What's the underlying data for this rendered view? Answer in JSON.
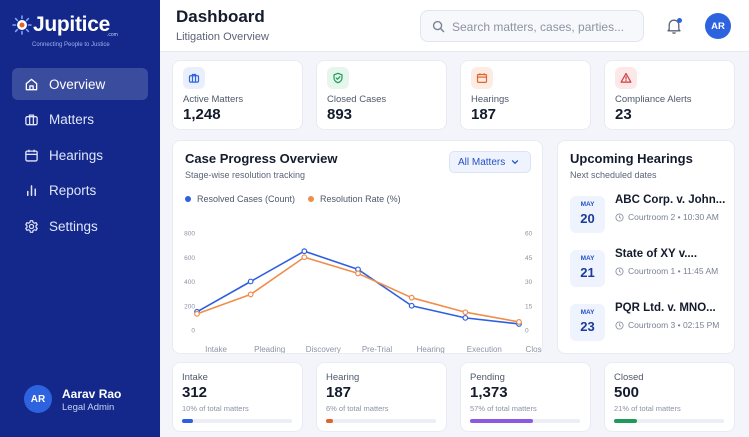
{
  "brand": {
    "name": "Jupitice",
    "domain_suffix": ".com",
    "tagline": "Connecting People to Justice"
  },
  "sidebar": {
    "items": [
      {
        "label": "Overview",
        "icon": "home-icon",
        "active": true
      },
      {
        "label": "Matters",
        "icon": "briefcase-icon"
      },
      {
        "label": "Hearings",
        "icon": "calendar-icon"
      },
      {
        "label": "Reports",
        "icon": "bar-chart-icon"
      },
      {
        "label": "Settings",
        "icon": "gear-icon"
      }
    ]
  },
  "user": {
    "initials": "AR",
    "name": "Aarav Rao",
    "role": "Legal Admin"
  },
  "header": {
    "title": "Dashboard",
    "subtitle": "Litigation Overview",
    "search_placeholder": "Search matters, cases, parties...",
    "avatar_initials": "AR"
  },
  "stats": [
    {
      "label": "Active Matters",
      "value": "1,248",
      "icon": "briefcase-icon",
      "color": "#2e63e0",
      "bg": "#e9effd"
    },
    {
      "label": "Closed Cases",
      "value": "893",
      "icon": "shield-check-icon",
      "color": "#1e9a5a",
      "bg": "#e5f6ec"
    },
    {
      "label": "Hearings",
      "value": "187",
      "icon": "calendar-icon",
      "color": "#e2632c",
      "bg": "#fdece3"
    },
    {
      "label": "Compliance Alerts",
      "value": "23",
      "icon": "warning-icon",
      "color": "#d23a3a",
      "bg": "#fce8e8"
    }
  ],
  "chart_card": {
    "title": "Case Progress Overview",
    "subtitle": "Stage-wise resolution tracking",
    "filter_label": "All Matters"
  },
  "chart_data": {
    "type": "line",
    "categories": [
      "Intake",
      "Pleading",
      "Discovery",
      "Pre-Trial",
      "Hearing",
      "Execution",
      "Closed"
    ],
    "series": [
      {
        "name": "Resolved Cases (Count)",
        "axis": "left",
        "color": "#2e5fe0",
        "values": [
          150,
          400,
          650,
          500,
          200,
          100,
          50
        ]
      },
      {
        "name": "Resolution Rate (%)",
        "axis": "right",
        "color": "#ef8e4c",
        "values": [
          10,
          22,
          45,
          35,
          20,
          11,
          5
        ]
      }
    ],
    "y_left": {
      "ticks": [
        0,
        200,
        400,
        600,
        800
      ],
      "range": [
        0,
        800
      ]
    },
    "y_right": {
      "ticks": [
        0,
        15,
        30,
        45,
        60
      ],
      "range": [
        0,
        60
      ]
    },
    "grid": false,
    "legend": "top-left"
  },
  "upcoming": {
    "title": "Upcoming Hearings",
    "subtitle": "Next scheduled dates",
    "items": [
      {
        "month": "MAY",
        "day": "20",
        "title": "ABC Corp. v. John...",
        "info": "Courtroom 2 • 10:30 AM"
      },
      {
        "month": "MAY",
        "day": "21",
        "title": "State of XY v....",
        "info": "Courtroom 1 • 11:45 AM"
      },
      {
        "month": "MAY",
        "day": "23",
        "title": "PQR Ltd. v. MNO...",
        "info": "Courtroom 3 • 02:15 PM"
      }
    ]
  },
  "bottom": [
    {
      "label": "Intake",
      "value": "312",
      "pct_text": "10% of total matters",
      "fraction": 0.1,
      "color": "#2e5fe0"
    },
    {
      "label": "Hearing",
      "value": "187",
      "pct_text": "6% of total matters",
      "fraction": 0.06,
      "color": "#e2632c"
    },
    {
      "label": "Pending",
      "value": "1,373",
      "pct_text": "57% of total matters",
      "fraction": 0.57,
      "color": "#8a5be0"
    },
    {
      "label": "Closed",
      "value": "500",
      "pct_text": "21% of total matters",
      "fraction": 0.21,
      "color": "#1e9a5a"
    }
  ]
}
